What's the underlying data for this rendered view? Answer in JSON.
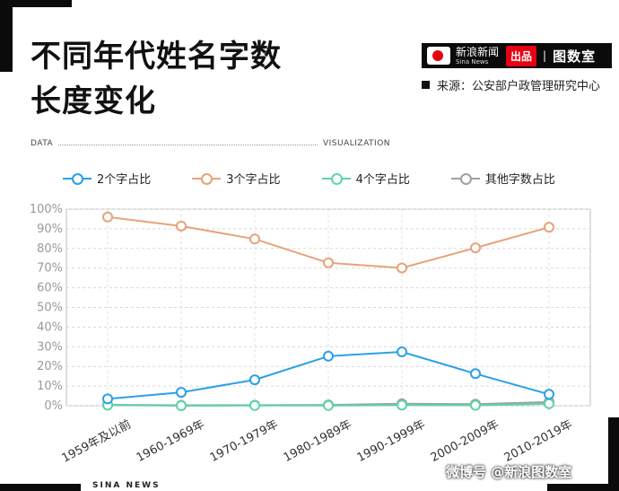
{
  "header": {
    "title_line1": "不同年代姓名字数",
    "title_line2": "长度变化",
    "brand_cn": "新浪新闻",
    "brand_en": "Sina News",
    "brand_tag": "出品",
    "brand_sep": "|",
    "brand_room": "图数室",
    "source": "来源：公安部户政管理研究中心"
  },
  "labels": {
    "data": "DATA",
    "visualization": "VISUALIZATION"
  },
  "footer": {
    "left": "SINA NEWS",
    "credit": "微博号 @新浪图数室"
  },
  "colors": {
    "two_char": "#2aa0e8",
    "three_char": "#e8a27a",
    "four_char": "#5ed4a6",
    "other": "#a0a0a0"
  },
  "chart_data": {
    "type": "line",
    "title": "不同年代姓名字数长度变化",
    "categories": [
      "1959年及以前",
      "1960-1969年",
      "1970-1979年",
      "1980-1989年",
      "1990-1999年",
      "2000-2009年",
      "2010-2019年"
    ],
    "series": [
      {
        "name": "2个字占比",
        "values": [
          3.5,
          6.8,
          13.2,
          25.2,
          27.4,
          16.3,
          5.8
        ]
      },
      {
        "name": "3个字占比",
        "values": [
          96.0,
          91.4,
          84.8,
          72.7,
          70.1,
          80.3,
          90.8
        ]
      },
      {
        "name": "4个字占比",
        "values": [
          0.3,
          0.0,
          0.1,
          0.1,
          0.3,
          0.2,
          1.0
        ]
      },
      {
        "name": "其他字数占比",
        "values": [
          0.5,
          0.2,
          0.3,
          0.4,
          1.0,
          0.8,
          1.9
        ]
      }
    ],
    "ylim": [
      0,
      100
    ],
    "yticks": [
      "0%",
      "10%",
      "20%",
      "30%",
      "40%",
      "50%",
      "60%",
      "70%",
      "80%",
      "90%",
      "100%"
    ],
    "grid": true,
    "legend": "top"
  }
}
